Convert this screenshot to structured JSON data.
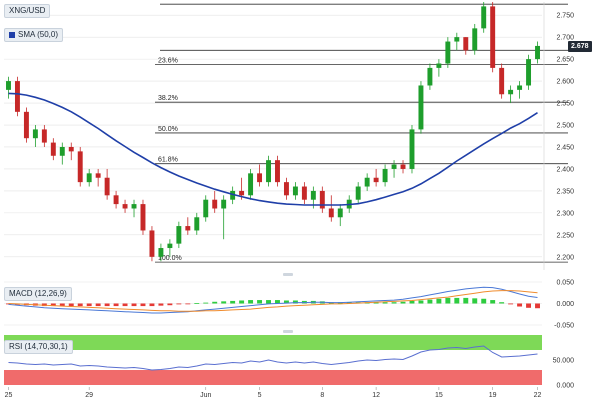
{
  "header": {
    "symbol": "XNG/USD",
    "indicator": "SMA (50,0)"
  },
  "panels": {
    "macd": {
      "label": "MACD (12,26,9)"
    },
    "rsi": {
      "label": "RSI (14,70,30,1)"
    }
  },
  "colors": {
    "up": "#1e9e2c",
    "down": "#c62828",
    "sma": "#1f3fa8",
    "grid": "#e3e3e3",
    "macd_line": "#4a78d6",
    "signal_line": "#f08c2e",
    "hist_up": "#2ecc40",
    "hist_down": "#e53935",
    "rsi_line": "#5a6fd0",
    "rsi_overbought": "#7ed957",
    "rsi_oversold": "#f06b6b"
  },
  "chart_data": [
    {
      "type": "candlestick",
      "title": "XNG/USD",
      "ylim": [
        2.17,
        2.78
      ],
      "y_ticks": [
        "2.750",
        "2.700",
        "2.650",
        "2.600",
        "2.550",
        "2.500",
        "2.450",
        "2.400",
        "2.350",
        "2.300",
        "2.250",
        "2.200"
      ],
      "last_price": "2.678",
      "x_ticks": [
        "25",
        "29",
        "Jun",
        "5",
        "8",
        "12",
        "15",
        "19",
        "22"
      ],
      "fibonacci": [
        {
          "label": "23.6%",
          "value": 2.638
        },
        {
          "label": "38.2%",
          "value": 2.552
        },
        {
          "label": "50.0%",
          "value": 2.482
        },
        {
          "label": "61.8%",
          "value": 2.412
        },
        {
          "label": "100.0%",
          "value": 2.188
        }
      ],
      "resistance": [
        2.67,
        2.775
      ],
      "candles": [
        [
          2.58,
          2.61,
          2.56,
          2.6
        ],
        [
          2.6,
          2.61,
          2.52,
          2.53
        ],
        [
          2.53,
          2.54,
          2.46,
          2.47
        ],
        [
          2.47,
          2.5,
          2.45,
          2.49
        ],
        [
          2.49,
          2.5,
          2.45,
          2.46
        ],
        [
          2.46,
          2.47,
          2.42,
          2.43
        ],
        [
          2.43,
          2.46,
          2.41,
          2.45
        ],
        [
          2.45,
          2.46,
          2.42,
          2.44
        ],
        [
          2.44,
          2.45,
          2.36,
          2.37
        ],
        [
          2.37,
          2.4,
          2.36,
          2.39
        ],
        [
          2.39,
          2.4,
          2.36,
          2.38
        ],
        [
          2.38,
          2.4,
          2.33,
          2.34
        ],
        [
          2.34,
          2.35,
          2.31,
          2.32
        ],
        [
          2.32,
          2.33,
          2.3,
          2.31
        ],
        [
          2.31,
          2.33,
          2.29,
          2.32
        ],
        [
          2.32,
          2.33,
          2.25,
          2.26
        ],
        [
          2.26,
          2.27,
          2.19,
          2.2
        ],
        [
          2.2,
          2.23,
          2.19,
          2.22
        ],
        [
          2.22,
          2.24,
          2.2,
          2.23
        ],
        [
          2.23,
          2.28,
          2.22,
          2.27
        ],
        [
          2.27,
          2.29,
          2.25,
          2.26
        ],
        [
          2.26,
          2.3,
          2.25,
          2.29
        ],
        [
          2.29,
          2.34,
          2.28,
          2.33
        ],
        [
          2.33,
          2.35,
          2.3,
          2.31
        ],
        [
          2.31,
          2.34,
          2.24,
          2.33
        ],
        [
          2.33,
          2.36,
          2.32,
          2.35
        ],
        [
          2.35,
          2.38,
          2.33,
          2.34
        ],
        [
          2.34,
          2.4,
          2.33,
          2.39
        ],
        [
          2.39,
          2.41,
          2.36,
          2.37
        ],
        [
          2.37,
          2.43,
          2.36,
          2.42
        ],
        [
          2.42,
          2.43,
          2.36,
          2.37
        ],
        [
          2.37,
          2.38,
          2.33,
          2.34
        ],
        [
          2.34,
          2.37,
          2.33,
          2.36
        ],
        [
          2.36,
          2.37,
          2.32,
          2.33
        ],
        [
          2.33,
          2.36,
          2.31,
          2.35
        ],
        [
          2.35,
          2.36,
          2.3,
          2.31
        ],
        [
          2.31,
          2.34,
          2.28,
          2.29
        ],
        [
          2.29,
          2.32,
          2.27,
          2.31
        ],
        [
          2.31,
          2.34,
          2.3,
          2.33
        ],
        [
          2.33,
          2.37,
          2.32,
          2.36
        ],
        [
          2.36,
          2.39,
          2.35,
          2.38
        ],
        [
          2.38,
          2.4,
          2.36,
          2.37
        ],
        [
          2.37,
          2.41,
          2.36,
          2.4
        ],
        [
          2.4,
          2.42,
          2.38,
          2.41
        ],
        [
          2.41,
          2.42,
          2.39,
          2.4
        ],
        [
          2.4,
          2.5,
          2.39,
          2.49
        ],
        [
          2.49,
          2.6,
          2.48,
          2.59
        ],
        [
          2.59,
          2.64,
          2.58,
          2.63
        ],
        [
          2.63,
          2.65,
          2.61,
          2.64
        ],
        [
          2.64,
          2.7,
          2.63,
          2.69
        ],
        [
          2.69,
          2.71,
          2.67,
          2.7
        ],
        [
          2.7,
          2.7,
          2.66,
          2.67
        ],
        [
          2.67,
          2.73,
          2.66,
          2.72
        ],
        [
          2.72,
          2.78,
          2.71,
          2.77
        ],
        [
          2.77,
          2.78,
          2.62,
          2.63
        ],
        [
          2.63,
          2.64,
          2.56,
          2.57
        ],
        [
          2.57,
          2.59,
          2.55,
          2.58
        ],
        [
          2.58,
          2.6,
          2.56,
          2.59
        ],
        [
          2.59,
          2.66,
          2.58,
          2.65
        ],
        [
          2.65,
          2.69,
          2.64,
          2.68
        ]
      ],
      "sma": [
        2.572,
        2.571,
        2.568,
        2.563,
        2.557,
        2.549,
        2.54,
        2.53,
        2.518,
        2.505,
        2.492,
        2.478,
        2.464,
        2.451,
        2.438,
        2.426,
        2.414,
        2.403,
        2.393,
        2.384,
        2.376,
        2.368,
        2.361,
        2.354,
        2.348,
        2.342,
        2.337,
        2.332,
        2.328,
        2.325,
        2.322,
        2.32,
        2.319,
        2.318,
        2.318,
        2.318,
        2.318,
        2.318,
        2.319,
        2.321,
        2.325,
        2.33,
        2.336,
        2.342,
        2.348,
        2.356,
        2.366,
        2.378,
        2.39,
        2.404,
        2.418,
        2.431,
        2.444,
        2.457,
        2.469,
        2.481,
        2.493,
        2.503,
        2.515,
        2.528
      ]
    },
    {
      "type": "macd",
      "title": "MACD (12,26,9)",
      "ylim": [
        -0.05,
        0.05
      ],
      "y_ticks": [
        "0.050",
        "0.000",
        "-0.050"
      ],
      "macd": [
        -0.002,
        -0.004,
        -0.006,
        -0.008,
        -0.01,
        -0.011,
        -0.012,
        -0.013,
        -0.014,
        -0.015,
        -0.016,
        -0.017,
        -0.018,
        -0.019,
        -0.02,
        -0.021,
        -0.022,
        -0.022,
        -0.021,
        -0.02,
        -0.019,
        -0.017,
        -0.015,
        -0.013,
        -0.011,
        -0.009,
        -0.007,
        -0.005,
        -0.003,
        -0.001,
        0.0,
        0.001,
        0.002,
        0.002,
        0.003,
        0.003,
        0.002,
        0.002,
        0.003,
        0.004,
        0.005,
        0.006,
        0.007,
        0.008,
        0.01,
        0.013,
        0.016,
        0.02,
        0.024,
        0.028,
        0.031,
        0.034,
        0.036,
        0.038,
        0.037,
        0.033,
        0.028,
        0.022,
        0.017,
        0.014
      ],
      "signal": [
        0.0,
        -0.001,
        -0.002,
        -0.003,
        -0.004,
        -0.005,
        -0.006,
        -0.007,
        -0.008,
        -0.009,
        -0.01,
        -0.011,
        -0.012,
        -0.013,
        -0.014,
        -0.015,
        -0.016,
        -0.017,
        -0.017,
        -0.018,
        -0.018,
        -0.018,
        -0.017,
        -0.017,
        -0.016,
        -0.015,
        -0.014,
        -0.013,
        -0.011,
        -0.009,
        -0.008,
        -0.006,
        -0.005,
        -0.004,
        -0.003,
        -0.002,
        -0.001,
        -0.001,
        0.0,
        0.001,
        0.002,
        0.003,
        0.004,
        0.005,
        0.006,
        0.007,
        0.009,
        0.011,
        0.013,
        0.015,
        0.018,
        0.021,
        0.024,
        0.027,
        0.029,
        0.03,
        0.03,
        0.029,
        0.027,
        0.025
      ]
    },
    {
      "type": "rsi",
      "title": "RSI (14,70,30,1)",
      "ylim": [
        0,
        100
      ],
      "y_ticks": [
        "50.000",
        "0.000"
      ],
      "overbought": 70,
      "oversold": 30,
      "values": [
        45,
        44,
        42,
        41,
        42,
        40,
        41,
        42,
        38,
        39,
        38,
        36,
        35,
        34,
        35,
        33,
        30,
        31,
        33,
        36,
        35,
        38,
        42,
        41,
        43,
        45,
        44,
        48,
        46,
        50,
        46,
        44,
        46,
        44,
        46,
        43,
        41,
        43,
        45,
        48,
        50,
        49,
        51,
        52,
        51,
        58,
        66,
        70,
        71,
        74,
        75,
        73,
        76,
        78,
        65,
        56,
        57,
        58,
        60,
        62
      ]
    }
  ]
}
